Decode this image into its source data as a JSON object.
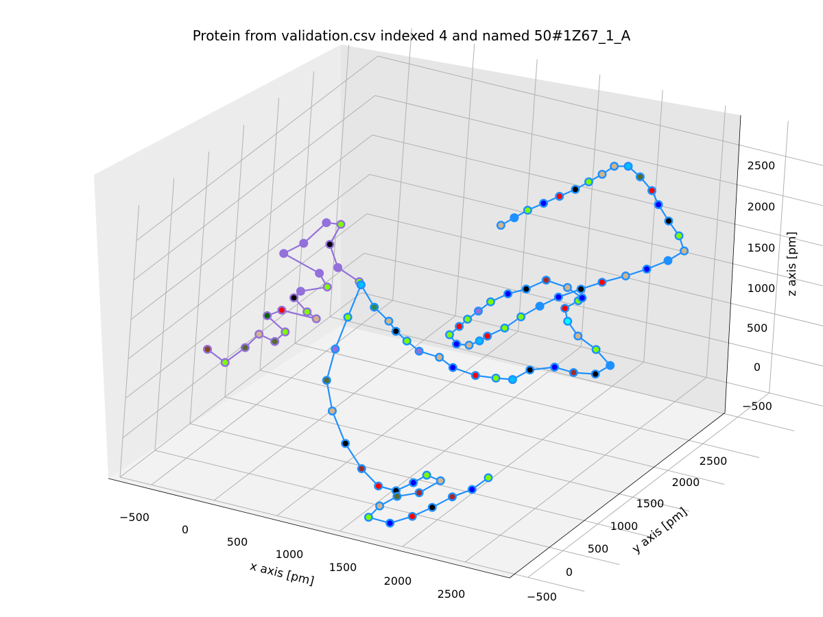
{
  "chart_data": {
    "type": "scatter",
    "title": "Protein from validation.csv indexed 4 and named 50#1Z67_1_A",
    "xlabel": "x axis [pm]",
    "ylabel": "y axis [pm]",
    "zlabel": "z axis [pm]",
    "x_ticks": [
      "−500",
      "0",
      "500",
      "1000",
      "1500",
      "2000",
      "2500"
    ],
    "y_ticks": [
      "−500",
      "0",
      "500",
      "1000",
      "1500",
      "2000",
      "2500"
    ],
    "z_ticks": [
      "−500",
      "0",
      "500",
      "1000",
      "1500",
      "2000",
      "2500"
    ],
    "grid": true,
    "projection": "3d",
    "series": [
      {
        "color": "#9370DB",
        "points": [
          [
            -560,
            320,
            640
          ],
          [
            -420,
            330,
            520
          ],
          [
            -240,
            270,
            820
          ],
          [
            -180,
            350,
            960
          ],
          [
            20,
            210,
            1040
          ],
          [
            60,
            280,
            1130
          ],
          [
            -100,
            300,
            1260
          ],
          [
            -20,
            360,
            1320
          ],
          [
            250,
            370,
            1310
          ],
          [
            210,
            300,
            1430
          ],
          [
            120,
            260,
            1600
          ],
          [
            180,
            240,
            1720
          ],
          [
            360,
            290,
            1810
          ],
          [
            280,
            310,
            1940
          ],
          [
            -20,
            330,
            2060
          ],
          [
            120,
            350,
            2230
          ],
          [
            230,
            460,
            2460
          ],
          [
            360,
            430,
            2510
          ],
          [
            310,
            380,
            2270
          ],
          [
            370,
            410,
            1980
          ],
          [
            540,
            420,
            1860
          ]
        ],
        "markers": [
          "#8B4513",
          "#7CFC00",
          "#556B2F",
          "#D2B48C",
          "#556B2F",
          "#7CFC00",
          "#006400",
          "#FF0000",
          "#D2B48C",
          "#7CFC00",
          "#000000",
          "#9370DB",
          "#7CFC00",
          "#9370DB",
          "#9370DB",
          "#9370DB",
          "#9370DB",
          "#7CFC00",
          "#000000",
          "#9370DB",
          "#7CFC00"
        ]
      },
      {
        "color": "#1E90FF",
        "points": [
          [
            540,
            450,
            1800
          ],
          [
            620,
            520,
            1500
          ],
          [
            700,
            600,
            1300
          ],
          [
            740,
            640,
            1160
          ],
          [
            800,
            700,
            1020
          ],
          [
            860,
            780,
            860
          ],
          [
            960,
            900,
            740
          ],
          [
            1040,
            960,
            600
          ],
          [
            1180,
            1040,
            500
          ],
          [
            1300,
            1120,
            460
          ],
          [
            1400,
            1180,
            440
          ],
          [
            1500,
            1240,
            560
          ],
          [
            1650,
            1320,
            600
          ],
          [
            1760,
            1400,
            520
          ],
          [
            1880,
            1500,
            480
          ],
          [
            1960,
            1560,
            580
          ],
          [
            1820,
            1600,
            700
          ],
          [
            1640,
            1660,
            760
          ],
          [
            1520,
            1720,
            860
          ],
          [
            1460,
            1780,
            960
          ],
          [
            1540,
            1820,
            1060
          ],
          [
            1600,
            1760,
            1160
          ],
          [
            1500,
            1720,
            1280
          ],
          [
            1360,
            1660,
            1360
          ],
          [
            1240,
            1600,
            1240
          ],
          [
            1120,
            1560,
            1160
          ],
          [
            1020,
            1500,
            1060
          ],
          [
            960,
            1440,
            960
          ],
          [
            900,
            1400,
            860
          ],
          [
            860,
            1360,
            780
          ],
          [
            820,
            1300,
            700
          ],
          [
            900,
            1260,
            640
          ],
          [
            1020,
            1220,
            700
          ],
          [
            1120,
            1180,
            820
          ],
          [
            1200,
            1140,
            940
          ],
          [
            1300,
            1200,
            1040
          ],
          [
            1380,
            1280,
            1160
          ],
          [
            1480,
            1360,
            1280
          ],
          [
            1580,
            1440,
            1380
          ],
          [
            1700,
            1540,
            1460
          ],
          [
            1820,
            1620,
            1540
          ],
          [
            1960,
            1700,
            1620
          ],
          [
            2080,
            1780,
            1700
          ],
          [
            2200,
            1860,
            1800
          ],
          [
            2280,
            1940,
            1900
          ],
          [
            2200,
            2000,
            2020
          ],
          [
            2080,
            2060,
            2120
          ],
          [
            1960,
            2120,
            2240
          ],
          [
            1880,
            2160,
            2360
          ],
          [
            1760,
            2200,
            2460
          ],
          [
            1640,
            2240,
            2520
          ],
          [
            1520,
            2260,
            2460
          ],
          [
            1440,
            2240,
            2340
          ],
          [
            1360,
            2200,
            2240
          ],
          [
            1280,
            2160,
            2140
          ],
          [
            1180,
            2120,
            2040
          ],
          [
            1080,
            2080,
            1940
          ],
          [
            980,
            2040,
            1840
          ],
          [
            900,
            2000,
            1740
          ],
          [
            820,
            1960,
            1640
          ]
        ],
        "markers": [
          "#00BFFF",
          "#2E8B57",
          "#D2B48C",
          "#000000",
          "#7CFC00",
          "#9370DB",
          "#D2B48C",
          "#0000FF",
          "#FF0000",
          "#7CFC00",
          "#00BFFF",
          "#000000",
          "#0000FF",
          "#A52A2A",
          "#000000",
          "#1E90FF",
          "#7CFC00",
          "#D2B48C",
          "#00FFFF",
          "#FF0000",
          "#7CFC00",
          "#0000FF",
          "#D2B48C",
          "#A52A2A",
          "#000000",
          "#0000FF",
          "#7CFC00",
          "#9370DB",
          "#7CFC00",
          "#FF0000",
          "#7CFC00",
          "#0000FF",
          "#D2B48C",
          "#00BFFF",
          "#FF0000",
          "#7CFC00",
          "#7CFC00",
          "#1E90FF",
          "#0000FF",
          "#000000",
          "#FF0000",
          "#D2B48C",
          "#0000FF",
          "#1E90FF",
          "#D2B48C",
          "#7CFC00",
          "#000000",
          "#0000FF",
          "#FF0000",
          "#556B2F",
          "#00BFFF",
          "#D2B48C",
          "#D2B48C",
          "#7CFC00",
          "#000000",
          "#FF0000",
          "#0000FF",
          "#7CFC00",
          "#1E90FF",
          "#D2B48C"
        ]
      },
      {
        "color": "#1E90FF",
        "points": [
          [
            540,
            450,
            1800
          ],
          [
            480,
            400,
            1400
          ],
          [
            420,
            360,
            1000
          ],
          [
            380,
            340,
            600
          ],
          [
            420,
            380,
            200
          ],
          [
            520,
            420,
            -200
          ],
          [
            640,
            460,
            -500
          ],
          [
            760,
            500,
            -700
          ],
          [
            880,
            540,
            -740
          ],
          [
            980,
            600,
            -640
          ],
          [
            1060,
            640,
            -540
          ],
          [
            1140,
            700,
            -620
          ],
          [
            1000,
            660,
            -800
          ],
          [
            860,
            600,
            -860
          ],
          [
            760,
            540,
            -980
          ],
          [
            700,
            500,
            -1120
          ],
          [
            840,
            560,
            -1180
          ],
          [
            980,
            620,
            -1080
          ],
          [
            1100,
            680,
            -960
          ],
          [
            1220,
            740,
            -820
          ],
          [
            1340,
            800,
            -720
          ],
          [
            1440,
            840,
            -560
          ]
        ],
        "markers": [
          "#00BFFF",
          "#7CFC00",
          "#9370DB",
          "#556B2F",
          "#D2B48C",
          "#000000",
          "#A52A2A",
          "#FF0000",
          "#000000",
          "#0000FF",
          "#7CFC00",
          "#D2B48C",
          "#A52A2A",
          "#556B2F",
          "#D2B48C",
          "#7CFC00",
          "#0000FF",
          "#FF0000",
          "#000000",
          "#A52A2A",
          "#0000FF",
          "#7CFC00"
        ]
      }
    ]
  }
}
